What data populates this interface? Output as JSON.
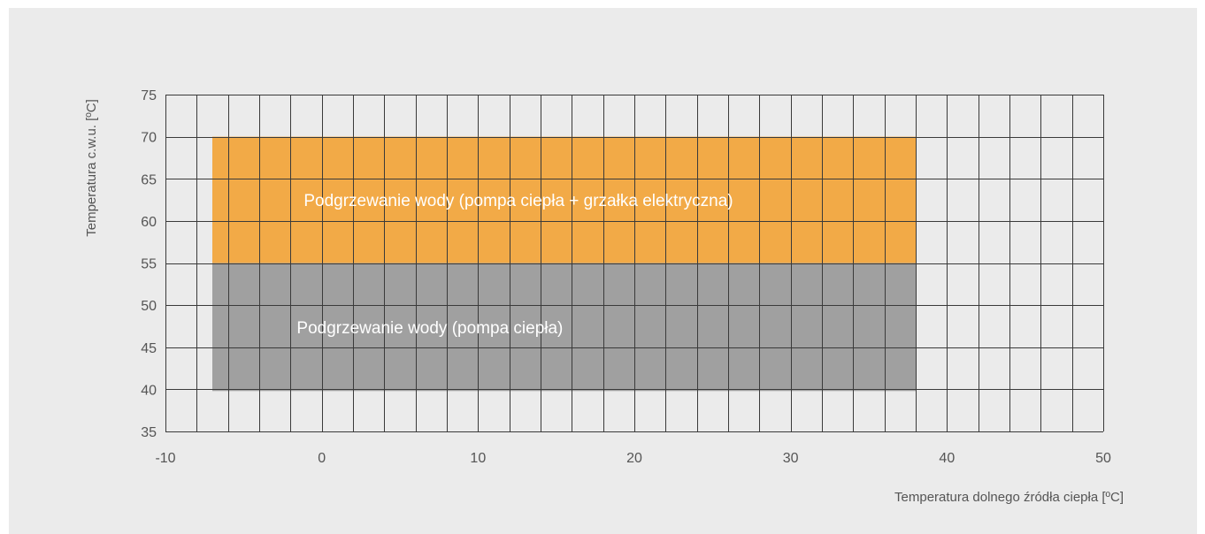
{
  "chart_data": {
    "type": "area",
    "title": "",
    "xlabel": "Temperatura dolnego źródła ciepła [ºC]",
    "ylabel": "Temperatura c.w.u. [ºC]",
    "xlim": [
      -10,
      50
    ],
    "ylim": [
      35,
      75
    ],
    "x_ticks": [
      "-10",
      "0",
      "10",
      "20",
      "30",
      "40",
      "50"
    ],
    "y_ticks": [
      "35",
      "40",
      "45",
      "50",
      "55",
      "60",
      "65",
      "70",
      "75"
    ],
    "grid": true,
    "x_grid_step": 2,
    "y_grid_step": 5,
    "regions": [
      {
        "label": "Podgrzewanie wody (pompa ciepła + grzałka elektryczna)",
        "x_range": [
          -7,
          38
        ],
        "y_range": [
          55,
          70
        ],
        "color": "#f2aa47"
      },
      {
        "label": "Podgrzewanie wody (pompa ciepła)",
        "x_range": [
          -7,
          38
        ],
        "y_range": [
          39.8,
          55
        ],
        "color": "#a0a0a0"
      }
    ]
  }
}
